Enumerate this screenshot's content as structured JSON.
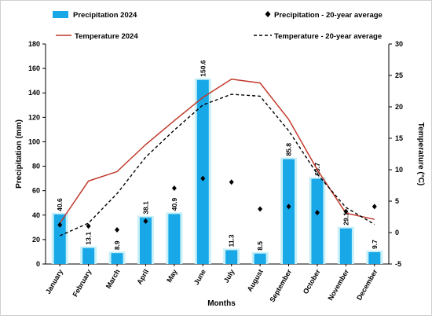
{
  "chart_data": {
    "type": "bar",
    "categories": [
      "January",
      "February",
      "March",
      "April",
      "May",
      "June",
      "July",
      "August",
      "September",
      "October",
      "November",
      "December"
    ],
    "series": [
      {
        "name": "Precipitation 2024",
        "kind": "bar",
        "axis": "left",
        "values": [
          40.6,
          13.1,
          8.9,
          38.1,
          40.9,
          150.6,
          11.3,
          8.5,
          85.8,
          69.7,
          29.1,
          9.7
        ],
        "labels": [
          "40.6",
          "13.1",
          "8.9",
          "38.1",
          "40.9",
          "150.6",
          "11.3",
          "8.5",
          "85.8",
          "69.7",
          "29.1",
          "9.7"
        ]
      },
      {
        "name": "Precipitation - 20-year average",
        "kind": "marker",
        "axis": "left",
        "values": [
          32,
          31,
          28,
          35,
          62,
          70,
          67,
          45,
          47,
          42,
          43,
          47
        ]
      },
      {
        "name": "Temperature 2024",
        "kind": "line",
        "axis": "right",
        "values": [
          1.5,
          8.2,
          9.7,
          14.0,
          17.8,
          21.5,
          24.4,
          23.8,
          18.0,
          10.0,
          3.1,
          2.1
        ]
      },
      {
        "name": "Temperature - 20-year average",
        "kind": "dashed-line",
        "axis": "right",
        "values": [
          -0.5,
          1.5,
          6.2,
          12.0,
          16.3,
          20.3,
          22.0,
          21.7,
          16.2,
          9.3,
          4.0,
          1.3
        ]
      }
    ],
    "xlabel": "Months",
    "ylabel": "Precipitation (mm)",
    "y2label": "Temperature (°C)",
    "ylim": [
      0,
      180
    ],
    "y2lim": [
      -5,
      30
    ],
    "yticks": [
      "0",
      "20",
      "40",
      "60",
      "80",
      "100",
      "120",
      "140",
      "160",
      "180"
    ],
    "y2ticks": [
      "-5",
      "0",
      "5",
      "10",
      "15",
      "20",
      "25",
      "30"
    ],
    "grid": false,
    "legend_position": "top",
    "colors": {
      "bar": "#18a8e8",
      "bar_glow": "#c8f0f8",
      "temp_line": "#c0392b",
      "avg_line": "#000000",
      "marker": "#000000"
    }
  }
}
